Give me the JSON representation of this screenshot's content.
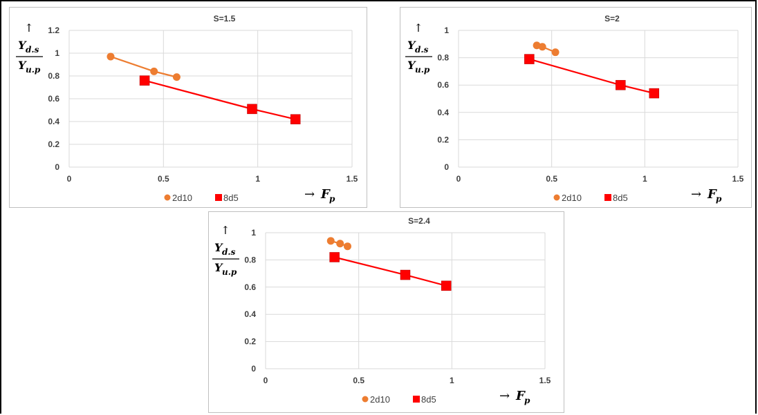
{
  "chart_data": [
    {
      "type": "line",
      "title": "S=1.5",
      "xlabel": "→ F_p",
      "ylabel": "↑ Y_d.s / Y_u.p",
      "xlim": [
        0,
        1.5
      ],
      "ylim": [
        0,
        1.2
      ],
      "xticks": [
        "0",
        "0.5",
        "1",
        "1.5"
      ],
      "yticks": [
        "0",
        "0.2",
        "0.4",
        "0.6",
        "0.8",
        "1",
        "1.2"
      ],
      "grid": true,
      "legend": "bottom",
      "series": [
        {
          "name": "2d10",
          "color": "#ED7D31",
          "marker": "circle",
          "points": [
            [
              0.22,
              0.97
            ],
            [
              0.45,
              0.84
            ],
            [
              0.57,
              0.79
            ]
          ]
        },
        {
          "name": "8d5",
          "color": "#FF0000",
          "marker": "square",
          "points": [
            [
              0.4,
              0.76
            ],
            [
              0.97,
              0.51
            ],
            [
              1.2,
              0.42
            ]
          ]
        }
      ]
    },
    {
      "type": "line",
      "title": "S=2",
      "xlabel": "→ F_p",
      "ylabel": "↑ Y_d.s / Y_u.p",
      "xlim": [
        0,
        1.5
      ],
      "ylim": [
        0,
        1
      ],
      "xticks": [
        "0",
        "0.5",
        "1",
        "1.5"
      ],
      "yticks": [
        "0",
        "0.2",
        "0.4",
        "0.6",
        "0.8",
        "1"
      ],
      "grid": true,
      "legend": "bottom",
      "series": [
        {
          "name": "2d10",
          "color": "#ED7D31",
          "marker": "circle",
          "points": [
            [
              0.42,
              0.89
            ],
            [
              0.45,
              0.88
            ],
            [
              0.52,
              0.84
            ]
          ]
        },
        {
          "name": "8d5",
          "color": "#FF0000",
          "marker": "square",
          "points": [
            [
              0.38,
              0.79
            ],
            [
              0.87,
              0.6
            ],
            [
              1.05,
              0.54
            ]
          ]
        }
      ]
    },
    {
      "type": "line",
      "title": "S=2.4",
      "xlabel": "→ F_p",
      "ylabel": "↑ Y_d.s / Y_u.p",
      "xlim": [
        0,
        1.5
      ],
      "ylim": [
        0,
        1
      ],
      "xticks": [
        "0",
        "0.5",
        "1",
        "1.5"
      ],
      "yticks": [
        "0",
        "0.2",
        "0.4",
        "0.6",
        "0.8",
        "1"
      ],
      "grid": true,
      "legend": "bottom",
      "series": [
        {
          "name": "2d10",
          "color": "#ED7D31",
          "marker": "circle",
          "points": [
            [
              0.35,
              0.94
            ],
            [
              0.4,
              0.92
            ],
            [
              0.44,
              0.9
            ]
          ]
        },
        {
          "name": "8d5",
          "color": "#FF0000",
          "marker": "square",
          "points": [
            [
              0.37,
              0.82
            ],
            [
              0.75,
              0.69
            ],
            [
              0.97,
              0.61
            ]
          ]
        }
      ]
    }
  ]
}
